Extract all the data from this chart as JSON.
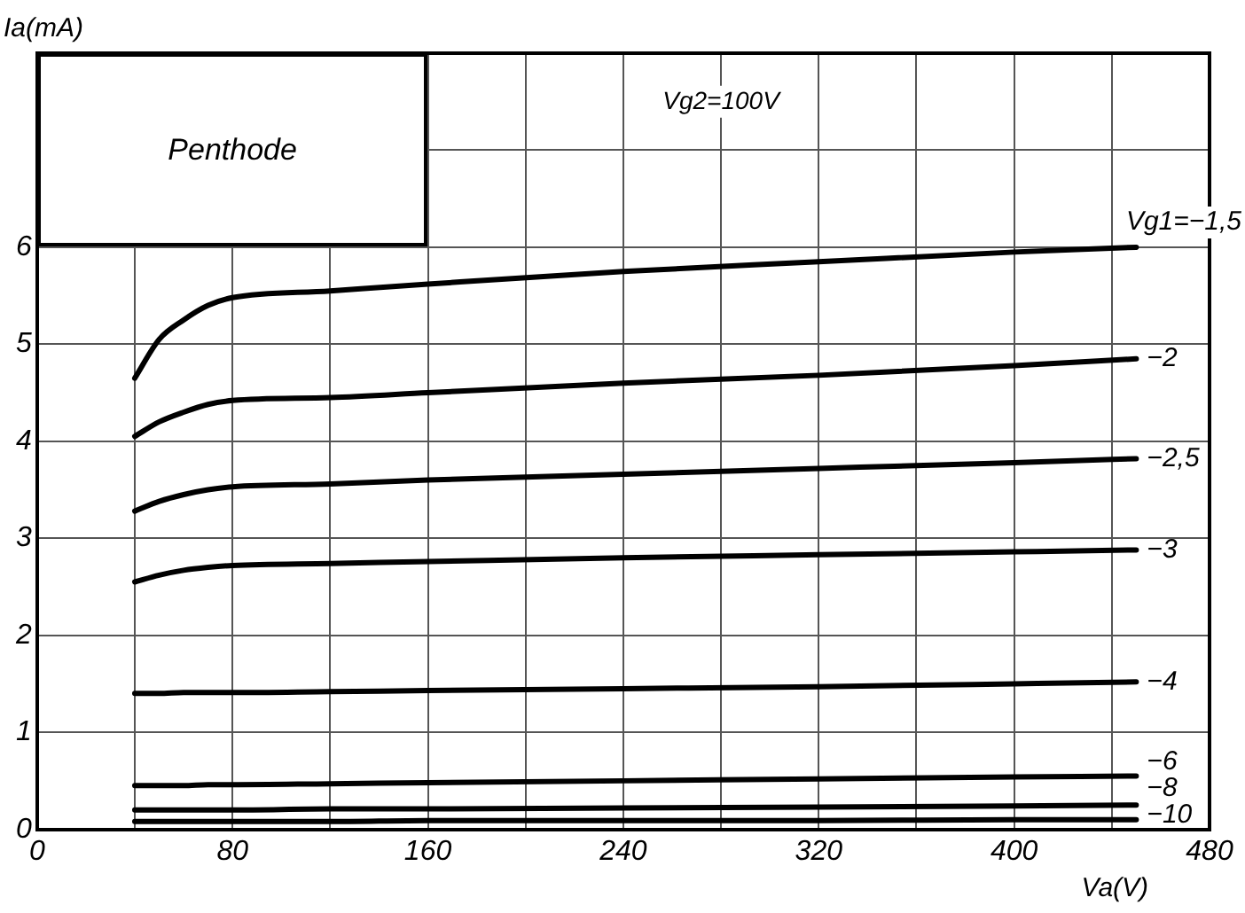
{
  "chart_data": {
    "type": "line",
    "xlabel": "Va(V)",
    "ylabel": "Ia(mA)",
    "annotations": [
      "Penthode",
      "Vg2=100V"
    ],
    "x": [
      40,
      50,
      60,
      70,
      80,
      120,
      160,
      240,
      320,
      400,
      450
    ],
    "series": [
      {
        "name": "Vg1=−1,5",
        "color": "#000000",
        "values": [
          4.65,
          5.05,
          5.25,
          5.4,
          5.48,
          5.55,
          5.62,
          5.75,
          5.85,
          5.95,
          6.0
        ]
      },
      {
        "name": "−2",
        "color": "#000000",
        "values": [
          4.05,
          4.2,
          4.3,
          4.38,
          4.42,
          4.45,
          4.5,
          4.6,
          4.68,
          4.78,
          4.85
        ]
      },
      {
        "name": "−2,5",
        "color": "#000000",
        "values": [
          3.28,
          3.38,
          3.45,
          3.5,
          3.53,
          3.56,
          3.6,
          3.66,
          3.72,
          3.78,
          3.82
        ]
      },
      {
        "name": "−3",
        "color": "#000000",
        "values": [
          2.55,
          2.62,
          2.67,
          2.7,
          2.72,
          2.74,
          2.76,
          2.8,
          2.83,
          2.86,
          2.88
        ]
      },
      {
        "name": "−4",
        "color": "#000000",
        "values": [
          1.4,
          1.4,
          1.41,
          1.41,
          1.41,
          1.42,
          1.43,
          1.45,
          1.47,
          1.5,
          1.52
        ]
      },
      {
        "name": "−6",
        "color": "#000000",
        "values": [
          0.45,
          0.45,
          0.45,
          0.46,
          0.46,
          0.47,
          0.48,
          0.5,
          0.52,
          0.54,
          0.55
        ]
      },
      {
        "name": "−8",
        "color": "#000000",
        "values": [
          0.2,
          0.2,
          0.2,
          0.2,
          0.2,
          0.21,
          0.21,
          0.22,
          0.23,
          0.24,
          0.25
        ]
      },
      {
        "name": "−10",
        "color": "#000000",
        "values": [
          0.08,
          0.08,
          0.08,
          0.08,
          0.08,
          0.08,
          0.09,
          0.09,
          0.09,
          0.1,
          0.1
        ]
      }
    ],
    "xlim": [
      0,
      480
    ],
    "xticks": [
      0,
      80,
      160,
      240,
      320,
      400,
      480,
      {
        "value": 40,
        "label": null
      },
      {
        "value": 120,
        "label": null
      },
      {
        "value": 200,
        "label": null
      },
      {
        "value": 280,
        "label": null
      },
      {
        "value": 360,
        "label": null
      },
      {
        "value": 440,
        "label": null
      }
    ],
    "ylim": [
      0,
      8
    ],
    "yticks": [
      0,
      1,
      2,
      3,
      4,
      5,
      6,
      {
        "value": 7,
        "label": null
      },
      {
        "value": 8,
        "label": null
      }
    ],
    "grid": true,
    "legend": false,
    "marker": "none",
    "line_style": "solid"
  }
}
